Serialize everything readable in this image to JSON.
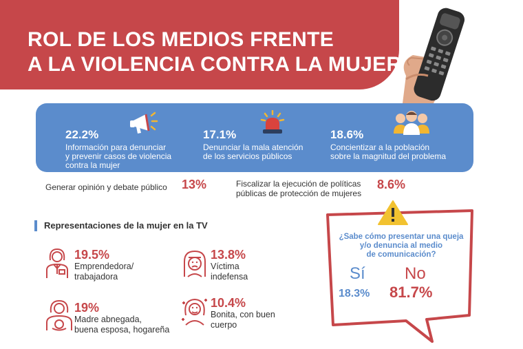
{
  "header": {
    "title_line1": "ROL DE LOS MEDIOS FRENTE",
    "title_line2": "A LA VIOLENCIA CONTRA LA MUJER"
  },
  "roles": [
    {
      "pct": "22.2%",
      "desc1": "Información para denunciar",
      "desc2": "y prevenir casos de violencia",
      "desc3": "contra la mujer",
      "icon": "megaphone-icon"
    },
    {
      "pct": "17.1%",
      "desc1": "Denunciar la mala atención",
      "desc2": "de los servicios públicos",
      "icon": "siren-icon"
    },
    {
      "pct": "18.6%",
      "desc1": "Concientizar a la población",
      "desc2": "sobre la magnitud del problema",
      "icon": "people-icon"
    }
  ],
  "extra": [
    {
      "label": "Generar opinión y debate público",
      "pct": "13%"
    },
    {
      "label1": "Fiscalizar la ejecución de políticas",
      "label2": "públicas de protección de mujeres",
      "pct": "8.6%"
    }
  ],
  "representations": {
    "title": "Representaciones de la mujer en la TV",
    "items": [
      {
        "pct": "19.5%",
        "line1": "Emprendedora/",
        "line2": "trabajadora",
        "icon": "worker-woman-icon"
      },
      {
        "pct": "13.8%",
        "line1": "Víctima",
        "line2": "indefensa",
        "icon": "sad-woman-icon"
      },
      {
        "pct": "19%",
        "line1": "Madre abnegada,",
        "line2": "buena esposa, hogareña",
        "icon": "mother-baby-icon"
      },
      {
        "pct": "10.4%",
        "line1": "Bonita, con buen",
        "line2": "cuerpo",
        "icon": "pretty-woman-icon"
      }
    ]
  },
  "question": {
    "line1": "¿Sabe cómo presentar una queja",
    "line2": "y/o denuncia al medio",
    "line3": "de comunicación?",
    "yes_label": "Sí",
    "no_label": "No",
    "yes_pct": "18.3%",
    "no_pct": "81.7%"
  },
  "colors": {
    "red": "#c6474a",
    "blue": "#5b8ccc"
  }
}
